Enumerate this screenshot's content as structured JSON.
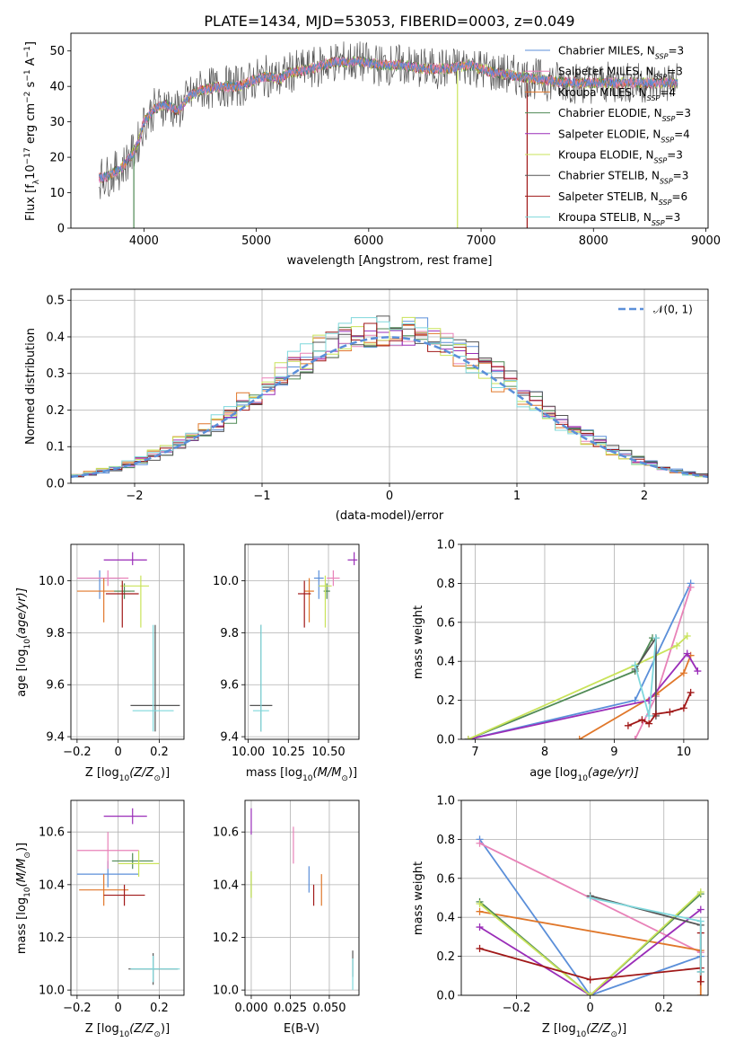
{
  "colors": {
    "Chabrier MILES": "#5b8fd9",
    "Salpeter MILES": "#e882b8",
    "Kroupa MILES": "#e0772a",
    "Chabrier ELODIE": "#4f8a55",
    "Salpeter ELODIE": "#9a2db8",
    "Kroupa ELODIE": "#c9e35a",
    "Chabrier STELIB": "#555555",
    "Salpeter STELIB": "#a01818",
    "Kroupa STELIB": "#7fd8dc"
  },
  "chart_data": [
    {
      "id": "spectrum",
      "type": "line",
      "title": "PLATE=1434, MJD=53053, FIBERID=0003, z=0.049",
      "xlabel": "wavelength [Angstrom, rest frame]",
      "ylabel": "Flux [f",
      "ylabel_sub": "λ",
      "ylabel_rest": "10",
      "ylabel_sup": "−17",
      "ylabel_tail": " erg cm",
      "ylabel_sup2": "−2",
      "ylabel_tail2": " s",
      "ylabel_sup3": "−1",
      "ylabel_tail3": " A",
      "ylabel_sup4": "−1",
      "ylabel_end": "]",
      "xlim": [
        3350,
        9020
      ],
      "ylim": [
        0,
        55
      ],
      "xticks": [
        4000,
        5000,
        6000,
        7000,
        8000,
        9000
      ],
      "yticks": [
        0,
        10,
        20,
        30,
        40,
        50
      ],
      "continuum": [
        [
          3600,
          14
        ],
        [
          3700,
          15
        ],
        [
          3800,
          17
        ],
        [
          3900,
          21
        ],
        [
          3960,
          25
        ],
        [
          4000,
          30
        ],
        [
          4100,
          34
        ],
        [
          4200,
          35
        ],
        [
          4300,
          33
        ],
        [
          4400,
          37
        ],
        [
          4500,
          39
        ],
        [
          4700,
          40
        ],
        [
          4850,
          40
        ],
        [
          5000,
          42
        ],
        [
          5100,
          43
        ],
        [
          5200,
          42
        ],
        [
          5300,
          44
        ],
        [
          5500,
          45
        ],
        [
          5700,
          47
        ],
        [
          5900,
          47
        ],
        [
          6100,
          46
        ],
        [
          6300,
          46
        ],
        [
          6500,
          45
        ],
        [
          6700,
          45
        ],
        [
          6900,
          46
        ],
        [
          7100,
          44
        ],
        [
          7300,
          43
        ],
        [
          7500,
          42
        ],
        [
          7800,
          41
        ],
        [
          8000,
          41
        ],
        [
          8300,
          41
        ],
        [
          8600,
          41
        ],
        [
          8750,
          41
        ]
      ],
      "drops": [
        {
          "name": "Chabrier ELODIE",
          "x": 3910
        },
        {
          "name": "Kroupa ELODIE",
          "x": 6790
        },
        {
          "name": "Salpeter STELIB",
          "x": 7410
        }
      ],
      "legend": [
        {
          "name": "Chabrier MILES",
          "label": "Chabrier MILES, N",
          "n": "3"
        },
        {
          "name": "Salpeter MILES",
          "label": "Salpeter MILES, N",
          "n": "3"
        },
        {
          "name": "Kroupa MILES",
          "label": "Kroupa MILES, N",
          "n": "4"
        },
        {
          "name": "Chabrier ELODIE",
          "label": "Chabrier ELODIE, N",
          "n": "3"
        },
        {
          "name": "Salpeter ELODIE",
          "label": "Salpeter ELODIE, N",
          "n": "4"
        },
        {
          "name": "Kroupa ELODIE",
          "label": "Kroupa ELODIE, N",
          "n": "3"
        },
        {
          "name": "Chabrier STELIB",
          "label": "Chabrier STELIB, N",
          "n": "3"
        },
        {
          "name": "Salpeter STELIB",
          "label": "Salpeter STELIB, N",
          "n": "6"
        },
        {
          "name": "Kroupa STELIB",
          "label": "Kroupa STELIB, N",
          "n": "3"
        }
      ],
      "legend_sub": "SSP"
    },
    {
      "id": "residuals",
      "type": "histogram",
      "xlabel": "(data-model)/error",
      "ylabel": "Normed distribution",
      "xlim": [
        -2.5,
        2.5
      ],
      "ylim": [
        0,
        0.53
      ],
      "xticks": [
        -2,
        -1,
        0,
        1,
        2
      ],
      "yticks": [
        0.0,
        0.1,
        0.2,
        0.3,
        0.4,
        0.5
      ],
      "bin_width": 0.1,
      "legend_label": "𝒩(0, 1)",
      "gaussian_color": "#5b8fd9"
    },
    {
      "id": "age_vs_Z",
      "type": "errorbar",
      "xlabel": "Z [log",
      "xlabel_sub": "10",
      "xlabel_rest": "(Z/Z",
      "xlabel_sub2": "⊙",
      "xlabel_end": ")]",
      "ylabel": "age  [log",
      "ylabel_sub": "10",
      "ylabel_rest": "(age/yr)]",
      "xlim": [
        -0.23,
        0.32
      ],
      "ylim": [
        9.39,
        10.14
      ],
      "xticks": [
        -0.2,
        0.0,
        0.2
      ],
      "yticks": [
        9.4,
        9.6,
        9.8,
        10.0
      ],
      "points": [
        {
          "name": "Chabrier MILES",
          "x": -0.09,
          "y": 10.01,
          "xerr": [
            0.1,
            0.1
          ],
          "yerr": [
            0.08,
            0.03
          ]
        },
        {
          "name": "Salpeter MILES",
          "x": -0.05,
          "y": 10.01,
          "xerr": [
            0.15,
            0.1
          ],
          "yerr": [
            0.03,
            0.03
          ]
        },
        {
          "name": "Kroupa MILES",
          "x": -0.07,
          "y": 9.96,
          "xerr": [
            0.13,
            0.13
          ],
          "yerr": [
            0.12,
            0.05
          ]
        },
        {
          "name": "Chabrier ELODIE",
          "x": 0.03,
          "y": 9.96,
          "xerr": [
            0.05,
            0.05
          ],
          "yerr": [
            0.03,
            0.03
          ]
        },
        {
          "name": "Salpeter ELODIE",
          "x": 0.07,
          "y": 10.08,
          "xerr": [
            0.14,
            0.07
          ],
          "yerr": [
            0.02,
            0.03
          ]
        },
        {
          "name": "Kroupa ELODIE",
          "x": 0.11,
          "y": 9.98,
          "xerr": [
            0.1,
            0.04
          ],
          "yerr": [
            0.16,
            0.04
          ]
        },
        {
          "name": "Chabrier STELIB",
          "x": 0.18,
          "y": 9.52,
          "xerr": [
            0.12,
            0.12
          ],
          "yerr": [
            0.1,
            0.31
          ]
        },
        {
          "name": "Salpeter STELIB",
          "x": 0.02,
          "y": 9.95,
          "xerr": [
            0.08,
            0.08
          ],
          "yerr": [
            0.13,
            0.05
          ]
        },
        {
          "name": "Kroupa STELIB",
          "x": 0.17,
          "y": 9.5,
          "xerr": [
            0.1,
            0.1
          ],
          "yerr": [
            0.08,
            0.33
          ]
        }
      ]
    },
    {
      "id": "age_vs_mass",
      "type": "errorbar",
      "xlabel": "mass [log",
      "xlabel_sub": "10",
      "xlabel_rest": "(M/M",
      "xlabel_sub2": "⊙",
      "xlabel_end": ")]",
      "xlim": [
        9.98,
        10.69
      ],
      "ylim": [
        9.39,
        10.14
      ],
      "xticks": [
        10.0,
        10.25,
        10.5
      ],
      "xticklabels": [
        "10.00",
        "10.25",
        "10.50"
      ],
      "yticks": [
        9.4,
        9.6,
        9.8,
        10.0
      ],
      "points": [
        {
          "name": "Chabrier MILES",
          "x": 10.44,
          "y": 10.01,
          "xerr": [
            0.03,
            0.03
          ],
          "yerr": [
            0.08,
            0.03
          ]
        },
        {
          "name": "Salpeter MILES",
          "x": 10.53,
          "y": 10.01,
          "xerr": [
            0.04,
            0.04
          ],
          "yerr": [
            0.03,
            0.03
          ]
        },
        {
          "name": "Kroupa MILES",
          "x": 10.38,
          "y": 9.96,
          "xerr": [
            0.03,
            0.03
          ],
          "yerr": [
            0.12,
            0.05
          ]
        },
        {
          "name": "Chabrier ELODIE",
          "x": 10.49,
          "y": 9.96,
          "xerr": [
            0.02,
            0.02
          ],
          "yerr": [
            0.03,
            0.03
          ]
        },
        {
          "name": "Salpeter ELODIE",
          "x": 10.66,
          "y": 10.08,
          "xerr": [
            0.04,
            0.02
          ],
          "yerr": [
            0.02,
            0.03
          ]
        },
        {
          "name": "Kroupa ELODIE",
          "x": 10.48,
          "y": 9.98,
          "xerr": [
            0.04,
            0.04
          ],
          "yerr": [
            0.16,
            0.04
          ]
        },
        {
          "name": "Chabrier STELIB",
          "x": 10.08,
          "y": 9.52,
          "xerr": [
            0.07,
            0.07
          ],
          "yerr": [
            0.1,
            0.31
          ]
        },
        {
          "name": "Salpeter STELIB",
          "x": 10.35,
          "y": 9.95,
          "xerr": [
            0.04,
            0.04
          ],
          "yerr": [
            0.13,
            0.05
          ]
        },
        {
          "name": "Kroupa STELIB",
          "x": 10.08,
          "y": 9.5,
          "xerr": [
            0.05,
            0.05
          ],
          "yerr": [
            0.08,
            0.33
          ]
        }
      ]
    },
    {
      "id": "mass_weight_vs_age",
      "type": "line",
      "xlabel": "age  [log",
      "xlabel_sub": "10",
      "xlabel_rest": "(age/yr)]",
      "ylabel": "mass weight",
      "xlim": [
        6.8,
        10.35
      ],
      "ylim": [
        0,
        1.0
      ],
      "xticks": [
        7,
        8,
        9,
        10
      ],
      "yticks": [
        0.0,
        0.2,
        0.4,
        0.6,
        0.8,
        1.0
      ],
      "series": [
        {
          "name": "Chabrier MILES",
          "x": [
            6.9,
            9.3,
            10.1
          ],
          "y": [
            0.0,
            0.2,
            0.8
          ]
        },
        {
          "name": "Salpeter MILES",
          "x": [
            9.3,
            9.6,
            10.1
          ],
          "y": [
            0.0,
            0.22,
            0.78
          ]
        },
        {
          "name": "Kroupa MILES",
          "x": [
            8.5,
            9.6,
            10.0,
            10.1
          ],
          "y": [
            0.0,
            0.23,
            0.34,
            0.43
          ]
        },
        {
          "name": "Chabrier ELODIE",
          "x": [
            6.9,
            9.3,
            9.55
          ],
          "y": [
            0.0,
            0.35,
            0.52
          ]
        },
        {
          "name": "Salpeter ELODIE",
          "x": [
            6.9,
            9.5,
            10.05,
            10.2
          ],
          "y": [
            0.0,
            0.2,
            0.44,
            0.35
          ]
        },
        {
          "name": "Kroupa ELODIE",
          "x": [
            6.9,
            9.3,
            9.9,
            10.05
          ],
          "y": [
            0.0,
            0.38,
            0.48,
            0.53
          ]
        },
        {
          "name": "Chabrier STELIB",
          "x": [
            9.3,
            9.6,
            9.6
          ],
          "y": [
            0.36,
            0.52,
            0.12
          ]
        },
        {
          "name": "Salpeter STELIB",
          "x": [
            9.2,
            9.4,
            9.5,
            9.6,
            9.8,
            10.0,
            10.1
          ],
          "y": [
            0.07,
            0.1,
            0.08,
            0.13,
            0.14,
            0.16,
            0.24
          ]
        },
        {
          "name": "Kroupa STELIB",
          "x": [
            9.3,
            9.5,
            9.6
          ],
          "y": [
            0.38,
            0.12,
            0.52
          ]
        }
      ]
    },
    {
      "id": "mass_vs_Z",
      "type": "errorbar",
      "xlabel": "Z [log",
      "xlabel_sub": "10",
      "xlabel_rest": "(Z/Z",
      "xlabel_sub2": "⊙",
      "xlabel_end": ")]",
      "ylabel": "mass [log",
      "ylabel_sub": "10",
      "ylabel_rest": "(M/M",
      "ylabel_sub2": "⊙",
      "ylabel_end": ")]",
      "xlim": [
        -0.23,
        0.32
      ],
      "ylim": [
        9.98,
        10.72
      ],
      "xticks": [
        -0.2,
        0.0,
        0.2
      ],
      "yticks": [
        10.0,
        10.2,
        10.4,
        10.6
      ],
      "points": [
        {
          "name": "Chabrier MILES",
          "x": -0.05,
          "y": 10.44,
          "xerr": [
            0.15,
            0.15
          ],
          "yerr": [
            0.05,
            0.05
          ]
        },
        {
          "name": "Salpeter MILES",
          "x": -0.05,
          "y": 10.53,
          "xerr": [
            0.15,
            0.15
          ],
          "yerr": [
            0.07,
            0.07
          ]
        },
        {
          "name": "Kroupa MILES",
          "x": -0.07,
          "y": 10.38,
          "xerr": [
            0.12,
            0.12
          ],
          "yerr": [
            0.06,
            0.06
          ]
        },
        {
          "name": "Chabrier ELODIE",
          "x": 0.07,
          "y": 10.49,
          "xerr": [
            0.1,
            0.1
          ],
          "yerr": [
            0.03,
            0.03
          ]
        },
        {
          "name": "Salpeter ELODIE",
          "x": 0.07,
          "y": 10.66,
          "xerr": [
            0.14,
            0.07
          ],
          "yerr": [
            0.03,
            0.03
          ]
        },
        {
          "name": "Kroupa ELODIE",
          "x": 0.1,
          "y": 10.48,
          "xerr": [
            0.1,
            0.1
          ],
          "yerr": [
            0.05,
            0.05
          ]
        },
        {
          "name": "Chabrier STELIB",
          "x": 0.17,
          "y": 10.08,
          "xerr": [
            0.12,
            0.12
          ],
          "yerr": [
            0.06,
            0.06
          ]
        },
        {
          "name": "Salpeter STELIB",
          "x": 0.03,
          "y": 10.36,
          "xerr": [
            0.1,
            0.1
          ],
          "yerr": [
            0.04,
            0.04
          ]
        },
        {
          "name": "Kroupa STELIB",
          "x": 0.17,
          "y": 10.08,
          "xerr": [
            0.11,
            0.13
          ],
          "yerr": [
            0.05,
            0.05
          ]
        }
      ]
    },
    {
      "id": "mass_vs_ebv",
      "type": "errorbar",
      "xlabel": "E(B-V)",
      "xlim": [
        -0.004,
        0.069
      ],
      "ylim": [
        9.98,
        10.72
      ],
      "xticks": [
        0.0,
        0.025,
        0.05
      ],
      "xticklabels": [
        "0.000",
        "0.025",
        "0.050"
      ],
      "yticks": [
        10.0,
        10.2,
        10.4,
        10.6
      ],
      "points": [
        {
          "name": "Chabrier MILES",
          "x": 0.037,
          "y": 10.42,
          "yerr": [
            0.05,
            0.05
          ]
        },
        {
          "name": "Salpeter MILES",
          "x": 0.027,
          "y": 10.55,
          "yerr": [
            0.07,
            0.07
          ]
        },
        {
          "name": "Kroupa MILES",
          "x": 0.045,
          "y": 10.38,
          "yerr": [
            0.06,
            0.06
          ]
        },
        {
          "name": "Chabrier ELODIE",
          "x": 0.0,
          "y": 10.4,
          "yerr": [
            0.05,
            0.05
          ]
        },
        {
          "name": "Salpeter ELODIE",
          "x": 0.0,
          "y": 10.64,
          "yerr": [
            0.05,
            0.05
          ]
        },
        {
          "name": "Kroupa ELODIE",
          "x": 0.0,
          "y": 10.4,
          "yerr": [
            0.05,
            0.05
          ]
        },
        {
          "name": "Chabrier STELIB",
          "x": 0.065,
          "y": 10.1,
          "yerr": [
            0.05,
            0.05
          ]
        },
        {
          "name": "Salpeter STELIB",
          "x": 0.04,
          "y": 10.36,
          "yerr": [
            0.04,
            0.04
          ]
        },
        {
          "name": "Kroupa STELIB",
          "x": 0.065,
          "y": 10.06,
          "yerr": [
            0.06,
            0.06
          ]
        }
      ]
    },
    {
      "id": "mass_weight_vs_Z",
      "type": "line",
      "xlabel": "Z [log",
      "xlabel_sub": "10",
      "xlabel_rest": "(Z/Z",
      "xlabel_sub2": "⊙",
      "xlabel_end": ")]",
      "ylabel": "mass weight",
      "xlim": [
        -0.35,
        0.32
      ],
      "ylim": [
        0,
        1.0
      ],
      "xticks": [
        -0.2,
        0.0,
        0.2
      ],
      "yticks": [
        0.0,
        0.2,
        0.4,
        0.6,
        0.8,
        1.0
      ],
      "series": [
        {
          "name": "Chabrier MILES",
          "x": [
            -0.3,
            0.0,
            0.3
          ],
          "y": [
            0.8,
            0.0,
            0.2
          ]
        },
        {
          "name": "Salpeter MILES",
          "x": [
            -0.3,
            0.3
          ],
          "y": [
            0.78,
            0.22
          ]
        },
        {
          "name": "Kroupa MILES",
          "x": [
            -0.3,
            0.3,
            0.3
          ],
          "y": [
            0.43,
            0.23,
            0.0
          ]
        },
        {
          "name": "Chabrier ELODIE",
          "x": [
            -0.3,
            0.0,
            0.3
          ],
          "y": [
            0.48,
            0.0,
            0.52
          ]
        },
        {
          "name": "Salpeter ELODIE",
          "x": [
            -0.3,
            0.0,
            0.3
          ],
          "y": [
            0.35,
            0.0,
            0.44
          ]
        },
        {
          "name": "Kroupa ELODIE",
          "x": [
            -0.3,
            0.0,
            0.3
          ],
          "y": [
            0.47,
            0.0,
            0.53
          ]
        },
        {
          "name": "Chabrier STELIB",
          "x": [
            0.0,
            0.3,
            0.3
          ],
          "y": [
            0.51,
            0.36,
            0.12
          ]
        },
        {
          "name": "Salpeter STELIB",
          "x": [
            -0.3,
            0.0,
            0.3,
            0.3,
            0.3
          ],
          "y": [
            0.24,
            0.08,
            0.14,
            0.07,
            0.32
          ]
        },
        {
          "name": "Kroupa STELIB",
          "x": [
            0.0,
            0.3,
            0.3
          ],
          "y": [
            0.5,
            0.38,
            0.12
          ]
        }
      ]
    }
  ]
}
